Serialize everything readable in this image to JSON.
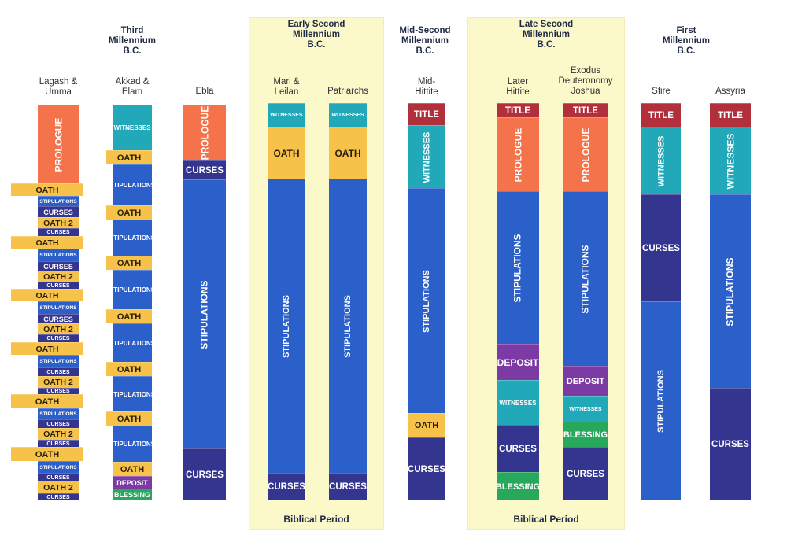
{
  "periods": [
    {
      "label": "Third\nMillennium\nB.C.",
      "highlight": false
    },
    {
      "label": "Early Second\nMillennium\nB.C.",
      "highlight": true,
      "footer": "Biblical Period"
    },
    {
      "label": "Mid-Second\nMillennium\nB.C.",
      "highlight": false
    },
    {
      "label": "Late Second\nMillennium\nB.C.",
      "highlight": true,
      "footer": "Biblical Period"
    },
    {
      "label": "First\nMillennium\nB.C.",
      "highlight": false
    }
  ],
  "colors": {
    "prologue": "#f5734a",
    "oath": "#f6c24a",
    "stipulations": "#2b5fc9",
    "curses": "#34358f",
    "witnesses": "#22a9b9",
    "title": "#b2303c",
    "deposit": "#7c3aa5",
    "blessing": "#27a85c",
    "highlight_bg": "#fbf8c9"
  },
  "columns": [
    {
      "name": "Lagash &\nUmma",
      "segments": [
        {
          "label": "PROLOGUE",
          "type": "prologue"
        },
        {
          "label": "OATH",
          "type": "oath"
        },
        {
          "label": "STIPULATIONS",
          "type": "stipulations"
        },
        {
          "label": "CURSES",
          "type": "curses"
        },
        {
          "label": "OATH 2",
          "type": "oath"
        },
        {
          "label": "CURSES",
          "type": "curses"
        },
        {
          "label": "OATH",
          "type": "oath"
        },
        {
          "label": "STIPULATIONS",
          "type": "stipulations"
        },
        {
          "label": "CURSES",
          "type": "curses"
        },
        {
          "label": "OATH 2",
          "type": "oath"
        },
        {
          "label": "CURSES",
          "type": "curses"
        },
        {
          "label": "OATH",
          "type": "oath"
        },
        {
          "label": "STIPULATIONS",
          "type": "stipulations"
        },
        {
          "label": "CURSES",
          "type": "curses"
        },
        {
          "label": "OATH 2",
          "type": "oath"
        },
        {
          "label": "CURSES",
          "type": "curses"
        },
        {
          "label": "OATH",
          "type": "oath"
        },
        {
          "label": "STIPULATIONS",
          "type": "stipulations"
        },
        {
          "label": "CURSES",
          "type": "curses"
        },
        {
          "label": "OATH 2",
          "type": "oath"
        },
        {
          "label": "CURSES",
          "type": "curses"
        },
        {
          "label": "OATH",
          "type": "oath"
        },
        {
          "label": "STIPULATIONS",
          "type": "stipulations"
        },
        {
          "label": "CURSES",
          "type": "curses"
        },
        {
          "label": "OATH 2",
          "type": "oath"
        },
        {
          "label": "CURSES",
          "type": "curses"
        },
        {
          "label": "OATH",
          "type": "oath"
        },
        {
          "label": "STIPULATIONS",
          "type": "stipulations"
        },
        {
          "label": "CURSES",
          "type": "curses"
        },
        {
          "label": "OATH 2",
          "type": "oath"
        },
        {
          "label": "CURSES",
          "type": "curses"
        }
      ]
    },
    {
      "name": "Akkad &\nElam",
      "segments": [
        {
          "label": "WITNESSES",
          "type": "witnesses"
        },
        {
          "label": "OATH",
          "type": "oath"
        },
        {
          "label": "STIPULATIONS",
          "type": "stipulations"
        },
        {
          "label": "OATH",
          "type": "oath"
        },
        {
          "label": "STIPULATIONS",
          "type": "stipulations"
        },
        {
          "label": "OATH",
          "type": "oath"
        },
        {
          "label": "STIPULATIONS",
          "type": "stipulations"
        },
        {
          "label": "OATH",
          "type": "oath"
        },
        {
          "label": "STIPULATIONS",
          "type": "stipulations"
        },
        {
          "label": "OATH",
          "type": "oath"
        },
        {
          "label": "STIPULATIONS",
          "type": "stipulations"
        },
        {
          "label": "OATH",
          "type": "oath"
        },
        {
          "label": "STIPULATIONS",
          "type": "stipulations"
        },
        {
          "label": "OATH",
          "type": "oath"
        },
        {
          "label": "DEPOSIT",
          "type": "deposit"
        },
        {
          "label": "BLESSING",
          "type": "blessing"
        }
      ]
    },
    {
      "name": "Ebla",
      "segments": [
        {
          "label": "PROLOGUE",
          "type": "prologue"
        },
        {
          "label": "CURSES",
          "type": "curses"
        },
        {
          "label": "STIPULATIONS",
          "type": "stipulations"
        },
        {
          "label": "CURSES",
          "type": "curses"
        }
      ]
    },
    {
      "name": "Mari &\nLeilan",
      "segments": [
        {
          "label": "WITNESSES",
          "type": "witnesses"
        },
        {
          "label": "OATH",
          "type": "oath"
        },
        {
          "label": "STIPULATIONS",
          "type": "stipulations"
        },
        {
          "label": "CURSES",
          "type": "curses"
        }
      ]
    },
    {
      "name": "Patriarchs",
      "segments": [
        {
          "label": "WITNESSES",
          "type": "witnesses"
        },
        {
          "label": "OATH",
          "type": "oath"
        },
        {
          "label": "STIPULATIONS",
          "type": "stipulations"
        },
        {
          "label": "CURSES",
          "type": "curses"
        }
      ]
    },
    {
      "name": "Mid-\nHittite",
      "segments": [
        {
          "label": "TITLE",
          "type": "title"
        },
        {
          "label": "WITNESSES",
          "type": "witnesses"
        },
        {
          "label": "STIPULATIONS",
          "type": "stipulations"
        },
        {
          "label": "OATH",
          "type": "oath"
        },
        {
          "label": "CURSES",
          "type": "curses"
        }
      ]
    },
    {
      "name": "Later\nHittite",
      "segments": [
        {
          "label": "TITLE",
          "type": "title"
        },
        {
          "label": "PROLOGUE",
          "type": "prologue"
        },
        {
          "label": "STIPULATIONS",
          "type": "stipulations"
        },
        {
          "label": "DEPOSIT",
          "type": "deposit"
        },
        {
          "label": "WITNESSES",
          "type": "witnesses"
        },
        {
          "label": "CURSES",
          "type": "curses"
        },
        {
          "label": "BLESSING",
          "type": "blessing"
        }
      ]
    },
    {
      "name": "Exodus\nDeuteronomy\nJoshua",
      "segments": [
        {
          "label": "TITLE",
          "type": "title"
        },
        {
          "label": "PROLOGUE",
          "type": "prologue"
        },
        {
          "label": "STIPULATIONS",
          "type": "stipulations"
        },
        {
          "label": "DEPOSIT",
          "type": "deposit"
        },
        {
          "label": "WITNESSES",
          "type": "witnesses"
        },
        {
          "label": "BLESSING",
          "type": "blessing"
        },
        {
          "label": "CURSES",
          "type": "curses"
        }
      ]
    },
    {
      "name": "Sfire",
      "segments": [
        {
          "label": "TITLE",
          "type": "title"
        },
        {
          "label": "WITNESSES",
          "type": "witnesses"
        },
        {
          "label": "CURSES",
          "type": "curses"
        },
        {
          "label": "STIPULATIONS",
          "type": "stipulations"
        }
      ]
    },
    {
      "name": "Assyria",
      "segments": [
        {
          "label": "TITLE",
          "type": "title"
        },
        {
          "label": "WITNESSES",
          "type": "witnesses"
        },
        {
          "label": "STIPULATIONS",
          "type": "stipulations"
        },
        {
          "label": "CURSES",
          "type": "curses"
        }
      ]
    }
  ]
}
